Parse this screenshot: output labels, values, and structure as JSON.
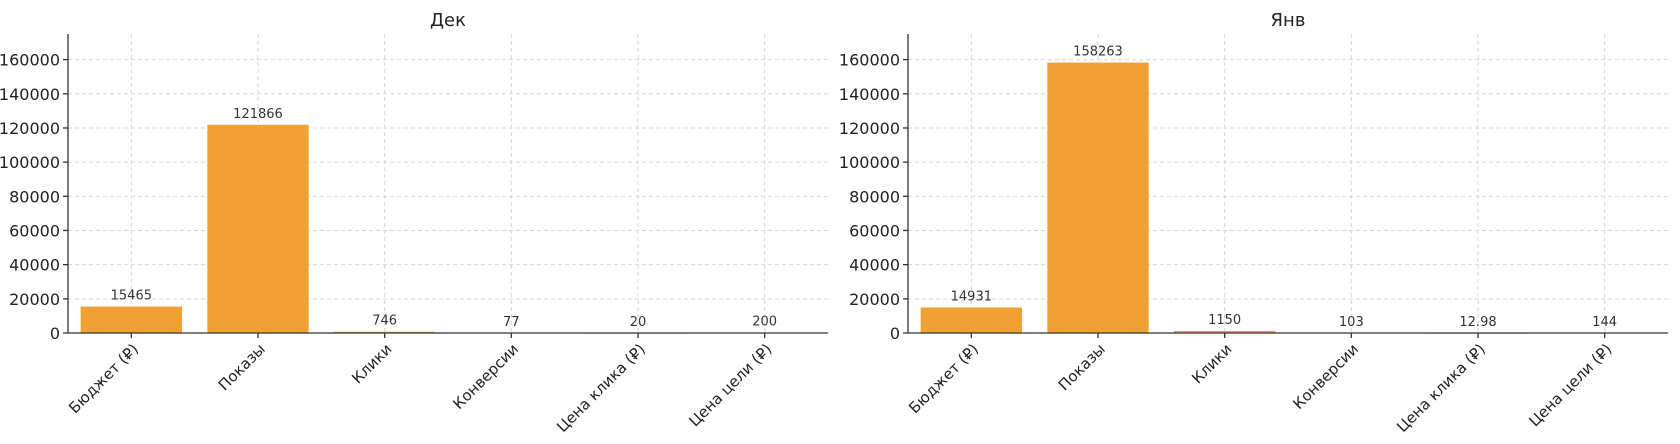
{
  "chart_data": [
    {
      "type": "bar",
      "title": "Дек",
      "categories": [
        "Бюджет (₽)",
        "Показы",
        "Клики",
        "Конверсии",
        "Цена клика (₽)",
        "Цена цели (₽)"
      ],
      "values": [
        15465,
        121866,
        746,
        77,
        20,
        200
      ],
      "value_labels": [
        "15465",
        "121866",
        "746",
        "77",
        "20",
        "200"
      ],
      "ylim": [
        0,
        175000
      ],
      "yticks": [
        0,
        20000,
        40000,
        60000,
        80000,
        100000,
        120000,
        140000,
        160000
      ],
      "grid": true,
      "bar_color": "#f0a035"
    },
    {
      "type": "bar",
      "title": "Янв",
      "categories": [
        "Бюджет (₽)",
        "Показы",
        "Клики",
        "Конверсии",
        "Цена клика (₽)",
        "Цена цели (₽)"
      ],
      "values": [
        14931,
        158263,
        1150,
        103,
        12.98,
        144
      ],
      "value_labels": [
        "14931",
        "158263",
        "1150",
        "103",
        "12.98",
        "144"
      ],
      "ylim": [
        0,
        175000
      ],
      "yticks": [
        0,
        20000,
        40000,
        60000,
        80000,
        100000,
        120000,
        140000,
        160000
      ],
      "grid": true,
      "bar_color": "#f0a035"
    }
  ]
}
